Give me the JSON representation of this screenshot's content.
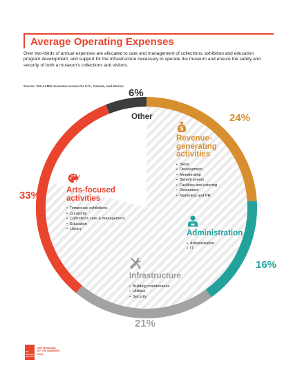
{
  "header": {
    "title": "Average Operating Expenses",
    "intro": "Over two-thirds of annual expenses are allocated to care and management of collections, exhibition and education program development, and support for the infrastructure necessary to operate the museum and ensure the safety and security of both a museum's collections and visitors.",
    "source": "Source: 220 AAMD museums across the U.S., Canada, and Mexico"
  },
  "colors": {
    "revenue": "#d78f30",
    "administration": "#23a19b",
    "infrastructure": "#a3a3a3",
    "arts": "#e8442e",
    "other": "#3d3d3d"
  },
  "chart_data": {
    "type": "pie",
    "title": "Average Operating Expenses",
    "slices": [
      {
        "key": "revenue",
        "label": "Revenue-generating activities",
        "value": 24,
        "value_label": "24%",
        "items": [
          "Store",
          "Development",
          "Membership",
          "Benefit events",
          "Facilities and catering",
          "Restaurant",
          "Marketing and PR"
        ]
      },
      {
        "key": "administration",
        "label": "Administration",
        "value": 16,
        "value_label": "16%",
        "items": [
          "Administration",
          "IT"
        ]
      },
      {
        "key": "infrastructure",
        "label": "Infrastructure",
        "value": 21,
        "value_label": "21%",
        "items": [
          "Building maintenance",
          "Utilities",
          "Security"
        ]
      },
      {
        "key": "arts",
        "label": "Arts-focused activities",
        "value": 33,
        "value_label": "33%",
        "items": [
          "Temporary exhibitions",
          "Curatorial",
          "Collections care & management",
          "Education",
          "Library"
        ]
      },
      {
        "key": "other",
        "label": "Other",
        "value": 6,
        "value_label": "6%",
        "items": []
      }
    ]
  },
  "labels": {
    "revenue_head": [
      "Revenue-",
      "generating",
      "activities"
    ],
    "arts_head": [
      "Arts-focused",
      "activities"
    ],
    "admin_head": "Administration",
    "infra_head": "Infrastructure",
    "other_head": "Other"
  },
  "icons": {
    "revenue": "money-bag-icon",
    "administration": "person-icon",
    "infrastructure": "tools-icon",
    "arts": "palette-icon"
  },
  "footer": {
    "logo_lines": [
      "Art",
      "Museum",
      "Directors"
    ],
    "text_lines": [
      "ART MUSEUMS",
      "BY THE NUMBERS",
      "2024"
    ]
  }
}
